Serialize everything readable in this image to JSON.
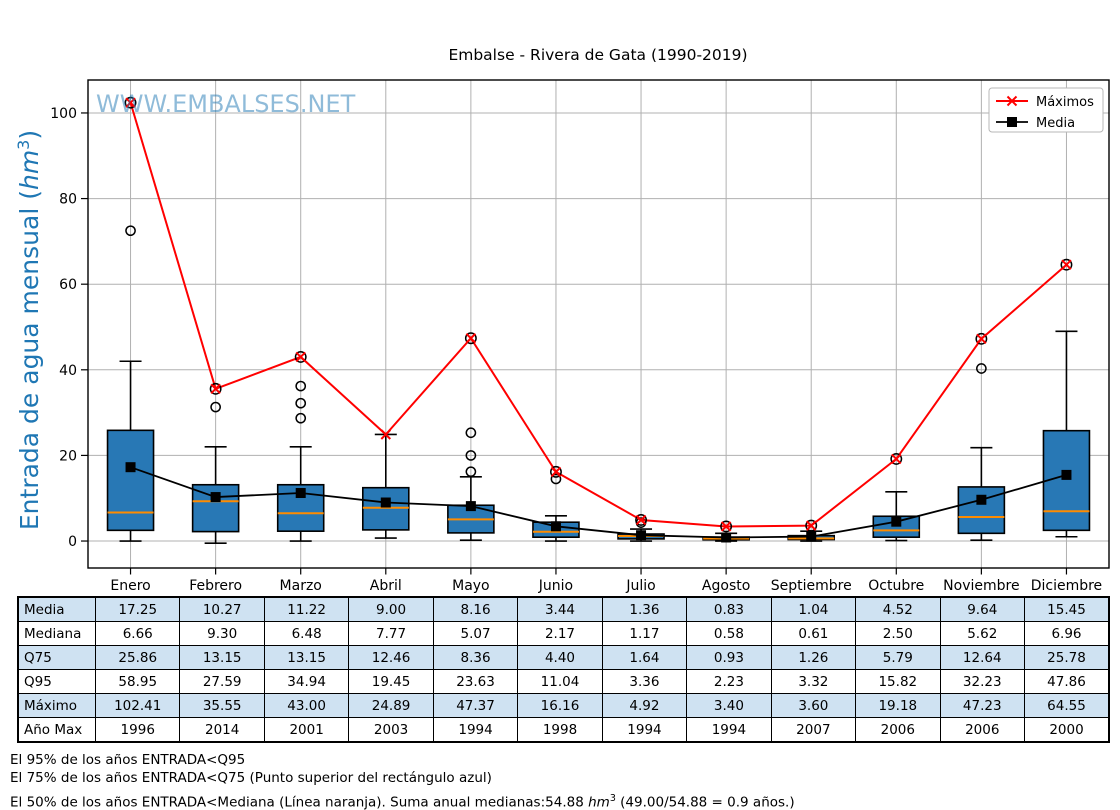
{
  "title": "Embalse - Rivera de Gata (1990-2019)",
  "watermark": "WWW.EMBALSES.NET",
  "ylabel": {
    "pre": "Entrada de agua mensual (",
    "unit": "hm",
    "sup": "3",
    "post": ")"
  },
  "legend": {
    "items": [
      {
        "label": "Máximos",
        "type": "max"
      },
      {
        "label": "Media",
        "type": "mean"
      }
    ]
  },
  "chart_data": {
    "type": "boxplot",
    "categories": [
      "Enero",
      "Febrero",
      "Marzo",
      "Abril",
      "Mayo",
      "Junio",
      "Julio",
      "Agosto",
      "Septiembre",
      "Octubre",
      "Noviembre",
      "Diciembre"
    ],
    "yticks": [
      0,
      20,
      40,
      60,
      80,
      100
    ],
    "ylim": [
      -6.3,
      107.7
    ],
    "grid": true,
    "legend_position": "upper right",
    "series": [
      {
        "name": "Máximos",
        "color": "#ff0000",
        "marker": "x",
        "values": [
          102.41,
          35.55,
          43.0,
          24.89,
          47.37,
          16.16,
          4.92,
          3.4,
          3.6,
          19.18,
          47.23,
          64.55
        ]
      },
      {
        "name": "Media",
        "color": "#000000",
        "marker": "square",
        "values": [
          17.25,
          10.27,
          11.22,
          9.0,
          8.16,
          3.44,
          1.36,
          0.83,
          1.04,
          4.52,
          9.64,
          15.45
        ]
      }
    ],
    "boxplot": {
      "median": [
        6.66,
        9.3,
        6.48,
        7.77,
        5.07,
        2.17,
        1.17,
        0.58,
        0.61,
        2.5,
        5.62,
        6.96
      ],
      "q1": [
        2.5,
        2.2,
        2.3,
        2.6,
        1.9,
        0.9,
        0.5,
        0.3,
        0.35,
        0.9,
        1.8,
        2.5
      ],
      "q3": [
        25.86,
        13.15,
        13.15,
        12.46,
        8.36,
        4.4,
        1.64,
        0.93,
        1.26,
        5.79,
        12.64,
        25.78
      ],
      "whislo": [
        0,
        -0.5,
        0,
        0.7,
        0.2,
        0,
        0,
        0,
        0,
        0.1,
        0.2,
        1.0
      ],
      "whishi": [
        42.0,
        22.0,
        22.0,
        24.89,
        15.0,
        5.9,
        2.8,
        1.8,
        2.3,
        11.5,
        21.8,
        49.0
      ],
      "outliers": [
        [
          72.5
        ],
        [
          31.3
        ],
        [
          28.7,
          32.2,
          36.2
        ],
        [],
        [
          16.2,
          20.0,
          25.3
        ],
        [
          14.5
        ],
        [
          4.3
        ],
        [],
        [],
        [],
        [
          40.3
        ],
        []
      ],
      "max_circle": [
        true,
        true,
        true,
        false,
        true,
        true,
        true,
        true,
        true,
        true,
        true,
        true
      ]
    },
    "colors": {
      "box_fill": "#2878b5",
      "median_line": "#ff8c00",
      "max_line": "#ff0000",
      "mean_line": "#000000",
      "grid": "#b0b0b0",
      "axis_label": "#1f77b4",
      "watermark": "#1f77b4"
    }
  },
  "table": {
    "row_headers": [
      "Media",
      "Mediana",
      "Q75",
      "Q95",
      "Máximo",
      "Año Max"
    ],
    "rows": [
      [
        "17.25",
        "10.27",
        "11.22",
        "9.00",
        "8.16",
        "3.44",
        "1.36",
        "0.83",
        "1.04",
        "4.52",
        "9.64",
        "15.45"
      ],
      [
        "6.66",
        "9.30",
        "6.48",
        "7.77",
        "5.07",
        "2.17",
        "1.17",
        "0.58",
        "0.61",
        "2.50",
        "5.62",
        "6.96"
      ],
      [
        "25.86",
        "13.15",
        "13.15",
        "12.46",
        "8.36",
        "4.40",
        "1.64",
        "0.93",
        "1.26",
        "5.79",
        "12.64",
        "25.78"
      ],
      [
        "58.95",
        "27.59",
        "34.94",
        "19.45",
        "23.63",
        "11.04",
        "3.36",
        "2.23",
        "3.32",
        "15.82",
        "32.23",
        "47.86"
      ],
      [
        "102.41",
        "35.55",
        "43.00",
        "24.89",
        "47.37",
        "16.16",
        "4.92",
        "3.40",
        "3.60",
        "19.18",
        "47.23",
        "64.55"
      ],
      [
        "1996",
        "2014",
        "2001",
        "2003",
        "1994",
        "1998",
        "1994",
        "1994",
        "2007",
        "2006",
        "2006",
        "2000"
      ]
    ],
    "shaded_color": "#cfe2f2"
  },
  "footer": {
    "line1": "El 95% de los años ENTRADA<Q95",
    "line2": "El 75% de los años ENTRADA<Q75 (Punto superior del rectángulo azul)",
    "line3_pre": "El 50% de los años ENTRADA<Mediana (Línea naranja). Suma anual medianas:54.88 ",
    "line3_unit": "hm",
    "line3_sup": "3",
    "line3_post": " (49.00/54.88 = 0.9 años.)"
  }
}
